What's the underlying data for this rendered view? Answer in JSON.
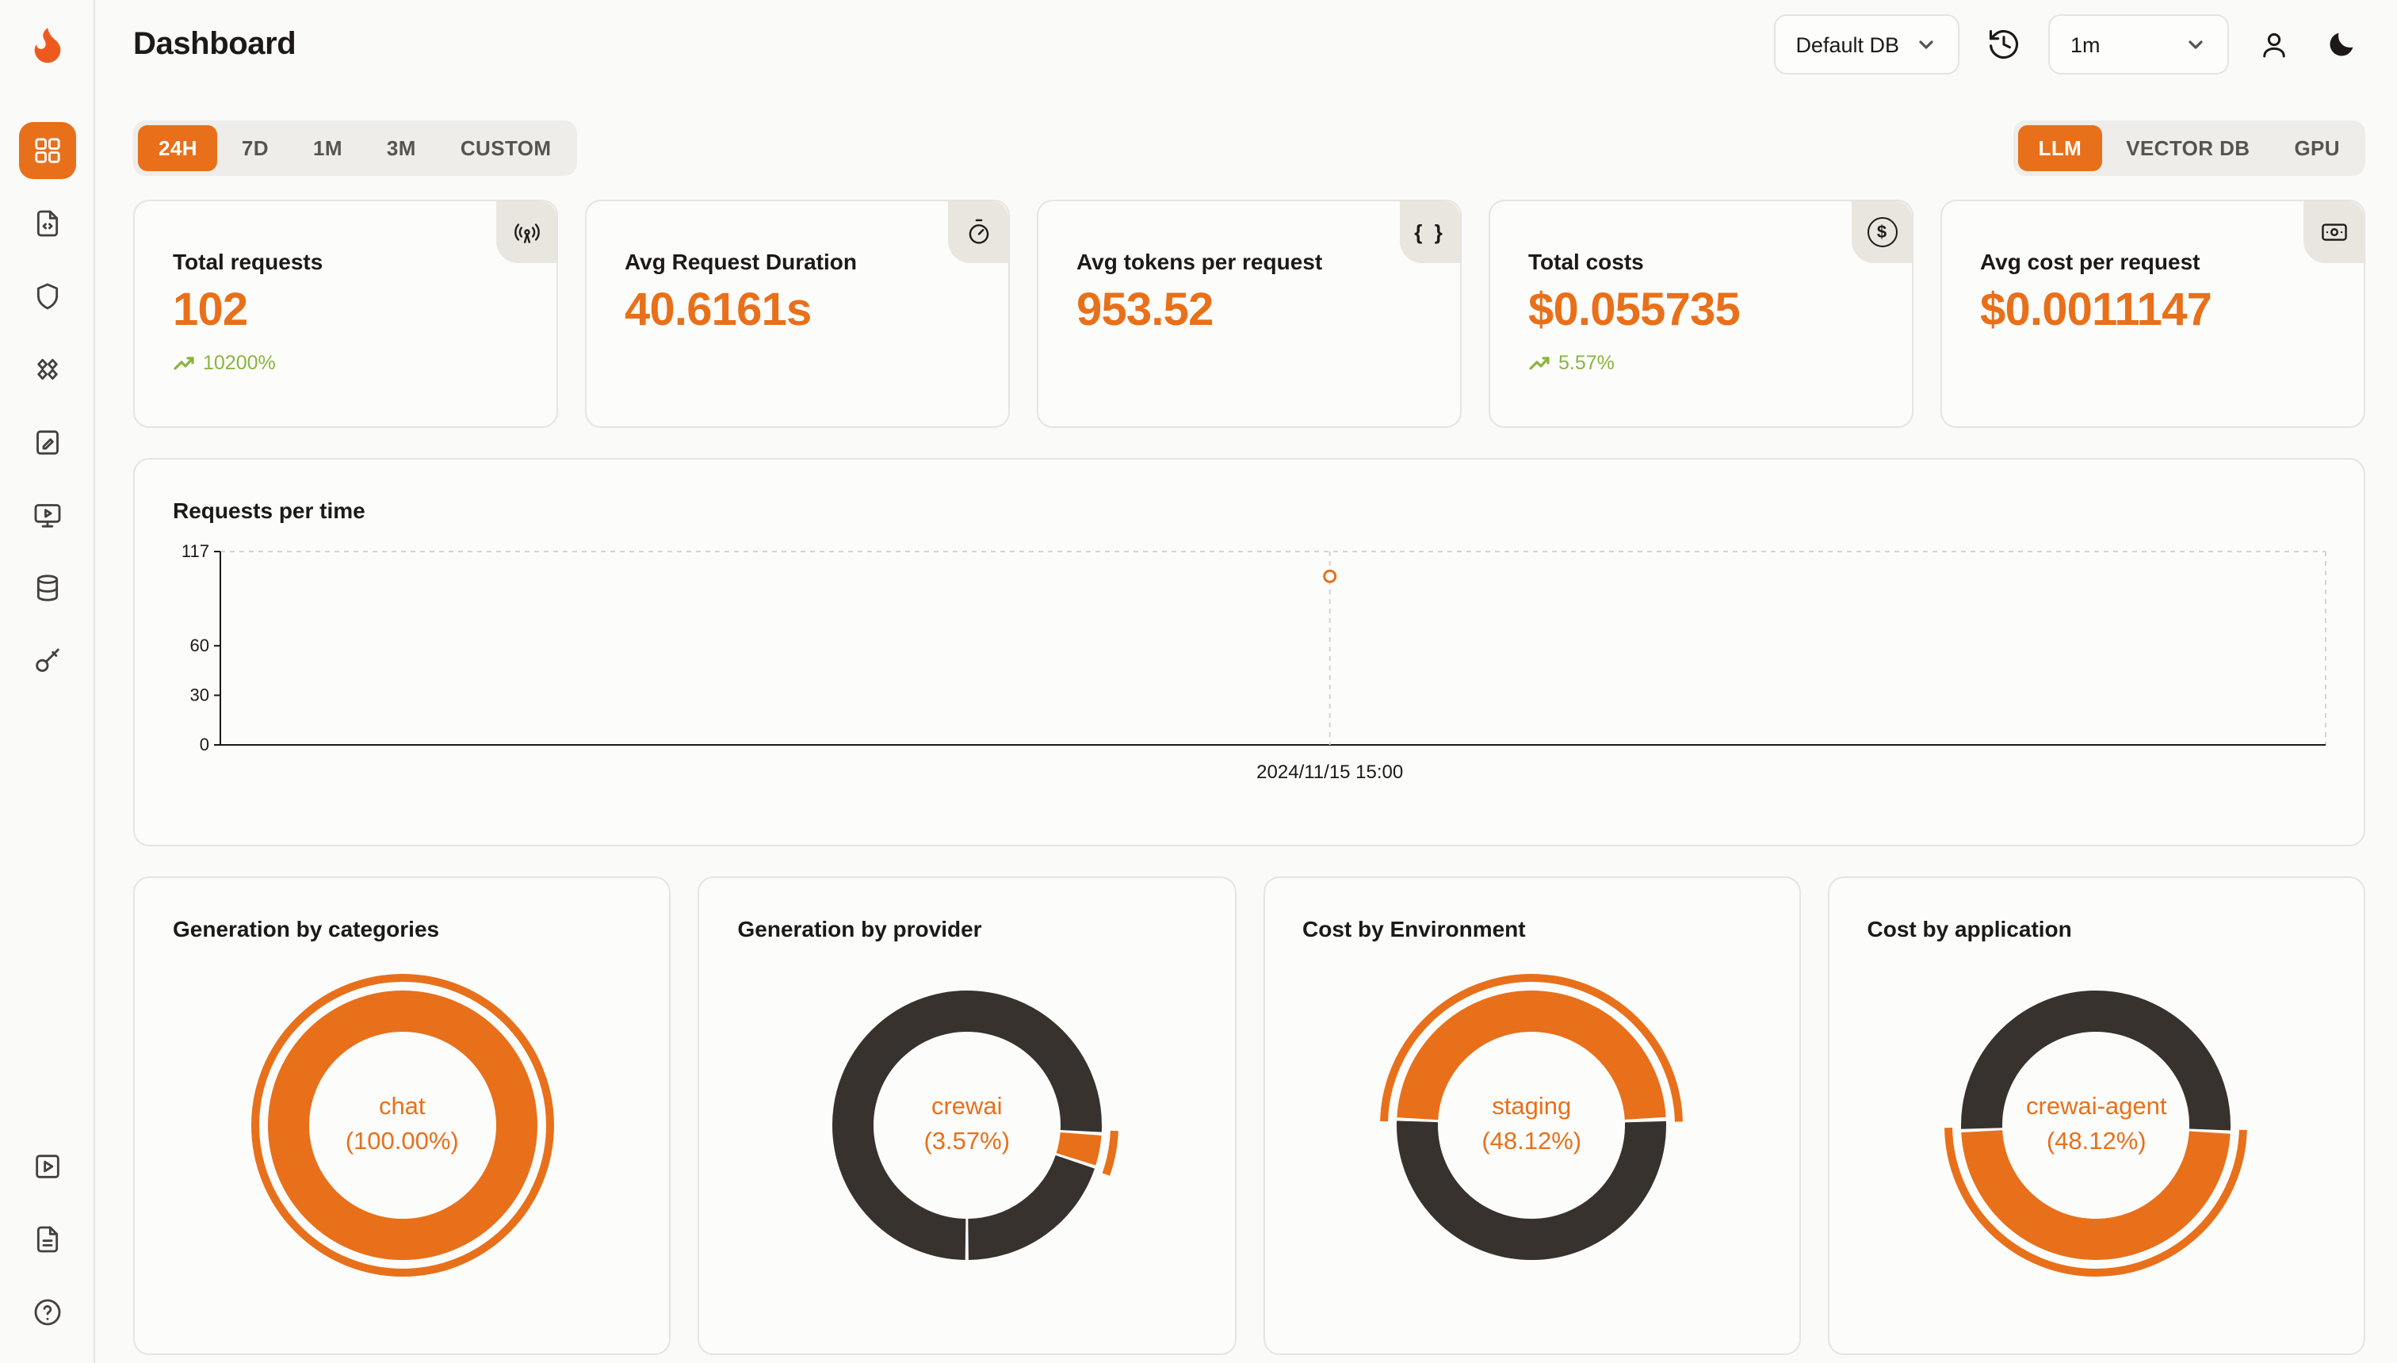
{
  "header": {
    "title": "Dashboard",
    "db_select": {
      "value": "Default DB"
    },
    "interval_select": {
      "value": "1m"
    },
    "icons": [
      "history-icon",
      "user-icon",
      "moon-icon"
    ]
  },
  "sidebar": {
    "icons_top": [
      "grid-icon",
      "file-code-icon",
      "shield-icon",
      "diamonds-icon",
      "clipboard-edit-icon",
      "monitor-play-icon",
      "database-icon",
      "key-icon"
    ],
    "icons_bottom": [
      "play-square-icon",
      "file-text-icon",
      "help-circle-icon"
    ],
    "active_icon": "grid-icon"
  },
  "filters": {
    "time_ranges": [
      "24H",
      "7D",
      "1M",
      "3M",
      "CUSTOM"
    ],
    "active_time_range": "24H",
    "scopes": [
      "LLM",
      "VECTOR DB",
      "GPU"
    ],
    "active_scope": "LLM"
  },
  "stats": [
    {
      "label": "Total requests",
      "value": "102",
      "delta": "10200%",
      "delta_dir": "up",
      "icon": "radio-tower-icon"
    },
    {
      "label": "Avg Request Duration",
      "value": "40.6161s",
      "icon": "timer-icon"
    },
    {
      "label": "Avg tokens per request",
      "value": "953.52",
      "icon": "braces-icon",
      "icon_glyph": "{ }"
    },
    {
      "label": "Total costs",
      "value": "$0.055735",
      "delta": "5.57%",
      "delta_dir": "up",
      "icon": "dollar-circle-icon",
      "icon_glyph": "$"
    },
    {
      "label": "Avg cost per request",
      "value": "$0.0011147",
      "icon": "wallet-icon"
    }
  ],
  "colors": {
    "accent": "#e8701a",
    "dark_segment": "#37322d",
    "positive": "#8bb43f",
    "axis": "#1c1917",
    "grid": "#d6d3d1",
    "card_bg": "#fcfcfb"
  },
  "chart_data": [
    {
      "type": "line",
      "title": "Requests per time",
      "x": [
        "2024/11/15 15:00"
      ],
      "values": [
        102
      ],
      "ylim": [
        0,
        117
      ],
      "yticks": [
        0,
        30,
        60,
        117
      ],
      "xlabel": "2024/11/15 15:00",
      "x_frac": 0.527,
      "grid": "dashed-top-right",
      "legend": "none"
    },
    {
      "type": "pie",
      "title": "Generation by categories",
      "center_label": "chat",
      "center_value": "(100.00%)",
      "segments": [
        {
          "name": "chat",
          "pct": 100,
          "color": "#e8701a",
          "from": 0,
          "to": 1
        }
      ],
      "highlight": {
        "from": 0,
        "to": 1
      }
    },
    {
      "type": "pie",
      "title": "Generation by provider",
      "center_label": "crewai",
      "center_value": "(3.57%)",
      "segments": [
        {
          "name": "crewai",
          "pct": 3.57,
          "color": "#e8701a",
          "from": 0.262,
          "to": 0.298
        },
        {
          "name": "other",
          "color": "#37322d",
          "from": 0.302,
          "to": 0.498
        },
        {
          "name": "other",
          "color": "#37322d",
          "from": 0.502,
          "to": 1.258
        }
      ],
      "highlight": {
        "from": 0.256,
        "to": 0.304
      }
    },
    {
      "type": "pie",
      "title": "Cost by Environment",
      "center_label": "staging",
      "center_value": "(48.12%)",
      "segments": [
        {
          "name": "staging",
          "pct": 48.12,
          "color": "#e8701a",
          "from": 0.759,
          "to": 1.2402
        },
        {
          "name": "other",
          "color": "#37322d",
          "from": 0.245,
          "to": 0.755
        }
      ],
      "highlight": {
        "from": 0.754,
        "to": 1.246
      }
    },
    {
      "type": "pie",
      "title": "Cost by application",
      "center_label": "crewai-agent",
      "center_value": "(48.12%)",
      "segments": [
        {
          "name": "crewai-agent",
          "pct": 48.12,
          "color": "#e8701a",
          "from": 0.26,
          "to": 0.7412
        },
        {
          "name": "other",
          "color": "#37322d",
          "from": 0.7452,
          "to": 1.256
        }
      ],
      "highlight": {
        "from": 0.255,
        "to": 0.747
      }
    }
  ]
}
